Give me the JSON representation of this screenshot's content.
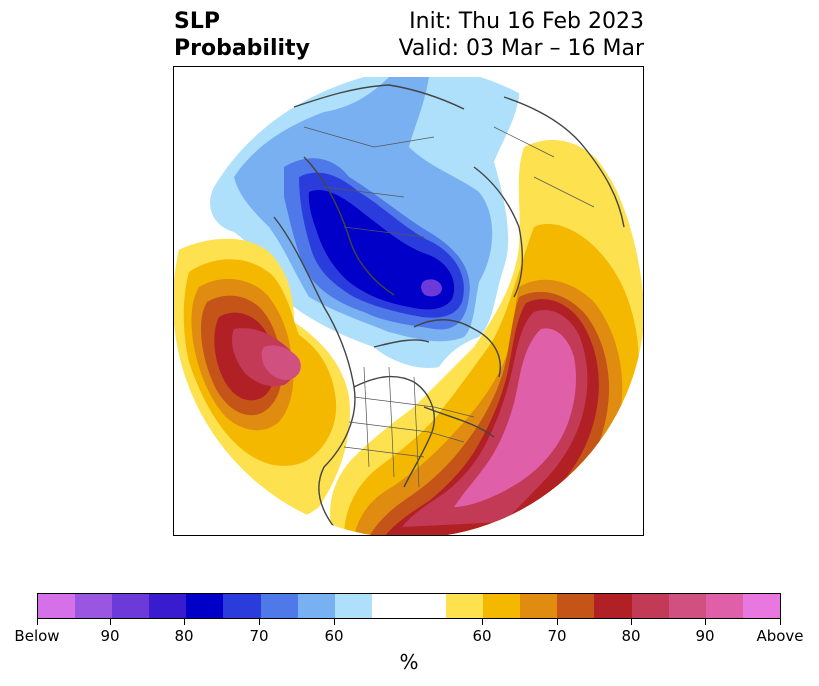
{
  "title": {
    "left_line1": "SLP",
    "left_line2": "Probability",
    "right_line1": "Init: Thu 16 Feb 2023",
    "right_line2": "Valid: 03 Mar – 16 Mar"
  },
  "colorbar": {
    "unit": "%",
    "colors": [
      "#d670e8",
      "#9a56e0",
      "#6b3ad8",
      "#3a1ccf",
      "#0000c8",
      "#2a3ddc",
      "#4f78e8",
      "#78b0f2",
      "#aee0fb",
      "#ffffff",
      "#fee14e",
      "#f5b800",
      "#e08c10",
      "#c45418",
      "#b02024",
      "#c23a55",
      "#d05080",
      "#df5fa8",
      "#e878e0"
    ],
    "tick_labels": [
      "Below",
      "90",
      "80",
      "70",
      "60",
      "60",
      "70",
      "80",
      "90",
      "Above"
    ]
  },
  "map_colors": {
    "blue_light": "#aee0fb",
    "blue_mid": "#78b0f2",
    "blue_mid2": "#4f78e8",
    "blue_deep": "#2a3ddc",
    "blue_core": "#0000c8",
    "purple_core": "#6b3ad8",
    "yellow": "#fee14e",
    "gold": "#f5b800",
    "orange": "#e08c10",
    "rust": "#c45418",
    "red": "#b02024",
    "crimson": "#c23a55",
    "pink": "#d05080",
    "magenta": "#df5fa8"
  }
}
